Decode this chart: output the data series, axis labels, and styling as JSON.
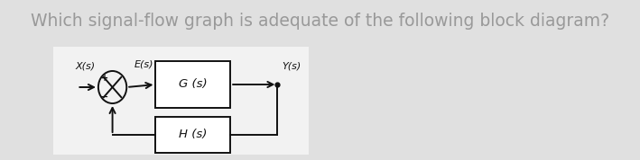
{
  "title": "Which signal-flow graph is adequate of the following block diagram?",
  "title_fontsize": 13.5,
  "title_color": "#999999",
  "bg_color": "#e0e0e0",
  "diagram_bg": "#f2f2f2",
  "labels": {
    "X_s": "X(s)",
    "E_s": "E(s)",
    "Y_s": "Y(s)",
    "G_s": "G (s)",
    "H_s": "H (s)"
  },
  "line_color": "#111111",
  "lw": 1.4
}
